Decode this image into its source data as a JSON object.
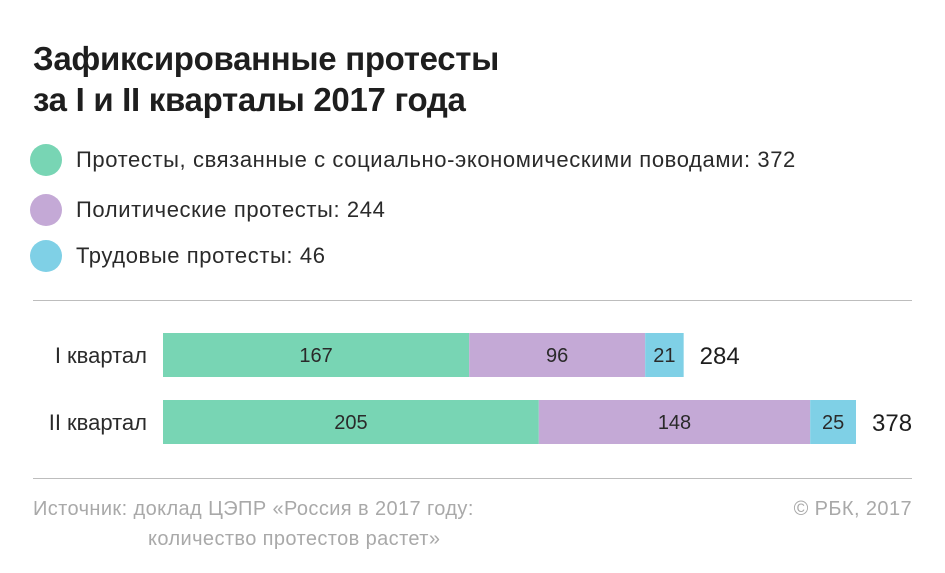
{
  "title": {
    "line1": "Зафиксированные протесты",
    "line2": "за I и II кварталы 2017 года"
  },
  "legend": [
    {
      "label": "Протесты, связанные с социально-экономическими поводами: 372",
      "color": "#78d5b4"
    },
    {
      "label": "Политические протесты: 244",
      "color": "#c4a9d6"
    },
    {
      "label": "Трудовые протесты: 46",
      "color": "#7fd0e6"
    }
  ],
  "chart_data": {
    "type": "bar",
    "orientation": "horizontal",
    "stacked": true,
    "categories": [
      "I квартал",
      "II квартал"
    ],
    "series": [
      {
        "name": "Протесты, связанные с социально-экономическими поводами",
        "values": [
          167,
          205
        ],
        "color": "#78d5b4"
      },
      {
        "name": "Политические протесты",
        "values": [
          96,
          148
        ],
        "color": "#c4a9d6"
      },
      {
        "name": "Трудовые протесты",
        "values": [
          21,
          25
        ],
        "color": "#7fd0e6"
      }
    ],
    "totals": [
      "284",
      "378"
    ],
    "xlim": [
      0,
      378
    ]
  },
  "source": {
    "line1": "Источник: доклад ЦЭПР «Россия в 2017 году:",
    "line2": "количество протестов растет»"
  },
  "credit": "© РБК, 2017"
}
